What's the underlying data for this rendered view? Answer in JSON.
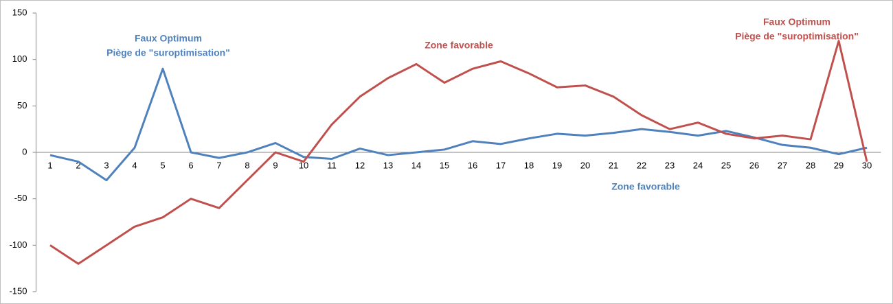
{
  "chart_data": {
    "type": "line",
    "categories": [
      1,
      2,
      3,
      4,
      5,
      6,
      7,
      8,
      9,
      10,
      11,
      12,
      13,
      14,
      15,
      16,
      17,
      18,
      19,
      20,
      21,
      22,
      23,
      24,
      25,
      26,
      27,
      28,
      29,
      30
    ],
    "series": [
      {
        "color": "#4f81bd",
        "values": [
          -3,
          -10,
          -30,
          5,
          90,
          0,
          -6,
          0,
          10,
          -5,
          -7,
          4,
          -3,
          0,
          3,
          12,
          9,
          15,
          20,
          18,
          21,
          25,
          22,
          18,
          23,
          16,
          8,
          5,
          -2,
          5
        ]
      },
      {
        "color": "#c0504d",
        "values": [
          -100,
          -120,
          -100,
          -80,
          -70,
          -50,
          -60,
          -30,
          0,
          -10,
          30,
          60,
          80,
          95,
          75,
          90,
          98,
          85,
          70,
          72,
          60,
          40,
          25,
          32,
          20,
          15,
          18,
          14,
          120,
          -10
        ]
      }
    ],
    "ylim": [
      -150,
      150
    ],
    "yticks": [
      -150,
      -100,
      -50,
      0,
      50,
      100,
      150
    ],
    "annotations": [
      {
        "lines": [
          "Faux Optimum",
          "Piège de \"suroptimisation\""
        ],
        "color": "#4f81bd"
      },
      {
        "lines": [
          "Zone favorable"
        ],
        "color": "#4f81bd"
      },
      {
        "lines": [
          "Zone favorable"
        ],
        "color": "#c0504d"
      },
      {
        "lines": [
          "Faux Optimum",
          "Piège de \"suroptimisation\""
        ],
        "color": "#c0504d"
      }
    ]
  }
}
